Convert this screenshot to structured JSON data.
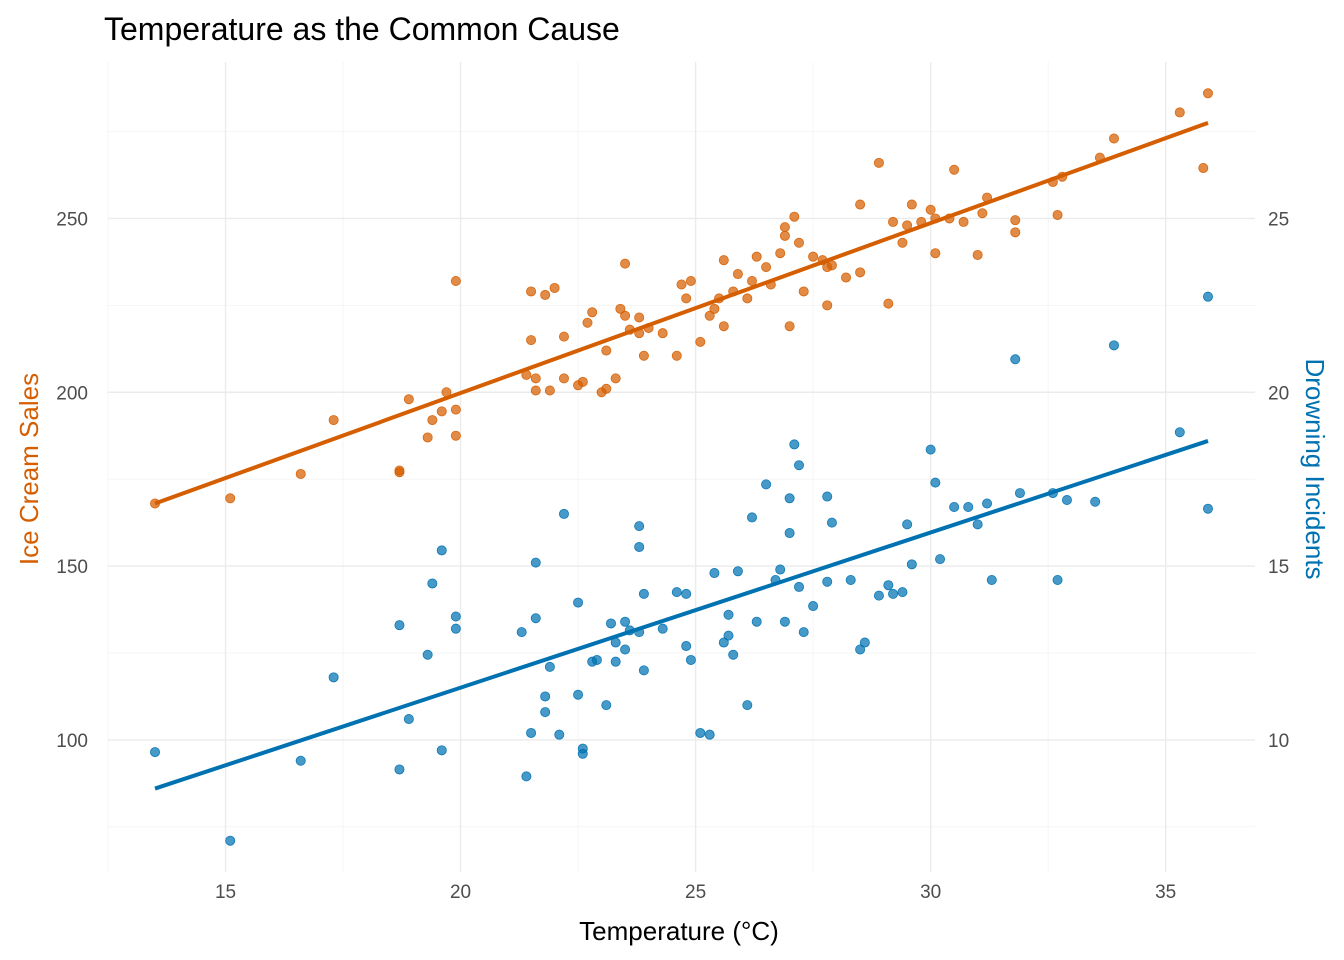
{
  "chart_data": {
    "type": "scatter",
    "title": "Temperature as the Common Cause",
    "xlabel": "Temperature (°C)",
    "ylabel": "Ice Cream Sales",
    "y2label": "Drowning Incidents",
    "xlim": [
      12.5,
      36.9
    ],
    "ylim": [
      62,
      295
    ],
    "y2lim": [
      6.2,
      29.5
    ],
    "x_ticks": [
      15,
      20,
      25,
      30,
      35
    ],
    "y_ticks": [
      100,
      150,
      200,
      250
    ],
    "y2_ticks": [
      10,
      15,
      20,
      25
    ],
    "grid": true,
    "colors": {
      "ice_cream": "#D55E00",
      "drowning": "#0072B2"
    },
    "series": [
      {
        "axis": "left",
        "color": "#D55E00",
        "trend": {
          "x": [
            13.5,
            35.9
          ],
          "y": [
            168,
            277.5
          ]
        },
        "points": [
          [
            13.5,
            168
          ],
          [
            15.1,
            169.5
          ],
          [
            16.6,
            176.5
          ],
          [
            17.3,
            192
          ],
          [
            18.7,
            177.5
          ],
          [
            18.7,
            177
          ],
          [
            18.9,
            198
          ],
          [
            19.3,
            187
          ],
          [
            19.4,
            192
          ],
          [
            19.6,
            194.5
          ],
          [
            19.7,
            200
          ],
          [
            19.9,
            195
          ],
          [
            19.9,
            187.5
          ],
          [
            19.9,
            232
          ],
          [
            21.4,
            205
          ],
          [
            21.5,
            229
          ],
          [
            21.5,
            215
          ],
          [
            21.6,
            204
          ],
          [
            21.6,
            200.5
          ],
          [
            21.8,
            228
          ],
          [
            22.0,
            230
          ],
          [
            21.9,
            200.5
          ],
          [
            22.2,
            216
          ],
          [
            22.2,
            204
          ],
          [
            22.5,
            202
          ],
          [
            22.6,
            203
          ],
          [
            22.7,
            220
          ],
          [
            22.8,
            223
          ],
          [
            23.0,
            200
          ],
          [
            23.1,
            201
          ],
          [
            23.1,
            212
          ],
          [
            23.3,
            204
          ],
          [
            23.4,
            224
          ],
          [
            23.5,
            237
          ],
          [
            23.5,
            222
          ],
          [
            23.6,
            218
          ],
          [
            23.8,
            221.5
          ],
          [
            23.8,
            217
          ],
          [
            23.9,
            210.5
          ],
          [
            24.0,
            218.5
          ],
          [
            24.3,
            217
          ],
          [
            24.6,
            210.5
          ],
          [
            24.7,
            231
          ],
          [
            24.8,
            227
          ],
          [
            24.9,
            232
          ],
          [
            25.1,
            214.5
          ],
          [
            25.3,
            222
          ],
          [
            25.4,
            224
          ],
          [
            25.5,
            227
          ],
          [
            25.6,
            238
          ],
          [
            25.6,
            219
          ],
          [
            25.8,
            229
          ],
          [
            25.9,
            234
          ],
          [
            26.1,
            227
          ],
          [
            26.2,
            232
          ],
          [
            26.3,
            239
          ],
          [
            26.5,
            236
          ],
          [
            26.6,
            231
          ],
          [
            26.8,
            240
          ],
          [
            26.9,
            245
          ],
          [
            26.9,
            247.5
          ],
          [
            27.0,
            219
          ],
          [
            27.1,
            250.5
          ],
          [
            27.3,
            229
          ],
          [
            27.2,
            243
          ],
          [
            27.5,
            239
          ],
          [
            27.7,
            238
          ],
          [
            27.8,
            236
          ],
          [
            27.8,
            225
          ],
          [
            27.9,
            236.5
          ],
          [
            28.2,
            233
          ],
          [
            28.5,
            254
          ],
          [
            28.5,
            234.5
          ],
          [
            28.9,
            266
          ],
          [
            29.1,
            225.5
          ],
          [
            29.2,
            249
          ],
          [
            29.4,
            243
          ],
          [
            29.5,
            248
          ],
          [
            29.6,
            254
          ],
          [
            29.8,
            249
          ],
          [
            30.0,
            252.5
          ],
          [
            30.1,
            250
          ],
          [
            30.1,
            240
          ],
          [
            30.4,
            250
          ],
          [
            30.5,
            264
          ],
          [
            30.7,
            249
          ],
          [
            31.0,
            239.5
          ],
          [
            31.1,
            251.5
          ],
          [
            31.2,
            256
          ],
          [
            31.8,
            246
          ],
          [
            31.8,
            249.5
          ],
          [
            32.6,
            260.5
          ],
          [
            32.7,
            251
          ],
          [
            32.8,
            262
          ],
          [
            33.6,
            267.5
          ],
          [
            33.9,
            273
          ],
          [
            35.3,
            280.5
          ],
          [
            35.8,
            264.5
          ],
          [
            35.9,
            286
          ]
        ]
      },
      {
        "axis": "right",
        "color": "#0072B2",
        "trend": {
          "x": [
            13.5,
            35.9
          ],
          "y": [
            8.6,
            18.6
          ]
        },
        "points": [
          [
            13.5,
            9.65
          ],
          [
            15.1,
            7.1
          ],
          [
            16.6,
            9.4
          ],
          [
            17.3,
            11.8
          ],
          [
            18.7,
            13.3
          ],
          [
            18.7,
            9.15
          ],
          [
            18.9,
            10.6
          ],
          [
            19.3,
            12.45
          ],
          [
            19.4,
            14.5
          ],
          [
            19.6,
            15.45
          ],
          [
            19.6,
            9.7
          ],
          [
            19.9,
            13.2
          ],
          [
            19.9,
            13.55
          ],
          [
            21.3,
            13.1
          ],
          [
            21.4,
            8.95
          ],
          [
            21.5,
            10.2
          ],
          [
            21.6,
            13.5
          ],
          [
            21.6,
            15.1
          ],
          [
            21.8,
            11.25
          ],
          [
            21.8,
            10.8
          ],
          [
            21.9,
            12.1
          ],
          [
            22.1,
            10.15
          ],
          [
            22.2,
            16.5
          ],
          [
            22.5,
            11.3
          ],
          [
            22.5,
            13.95
          ],
          [
            22.6,
            9.75
          ],
          [
            22.6,
            9.6
          ],
          [
            22.8,
            12.25
          ],
          [
            22.9,
            12.3
          ],
          [
            23.1,
            11.0
          ],
          [
            23.2,
            13.35
          ],
          [
            23.3,
            12.8
          ],
          [
            23.3,
            12.25
          ],
          [
            23.5,
            13.4
          ],
          [
            23.5,
            12.6
          ],
          [
            23.6,
            13.15
          ],
          [
            23.8,
            13.1
          ],
          [
            23.8,
            15.55
          ],
          [
            23.8,
            16.15
          ],
          [
            23.9,
            14.2
          ],
          [
            23.9,
            12.0
          ],
          [
            24.3,
            13.2
          ],
          [
            24.6,
            14.25
          ],
          [
            24.8,
            14.2
          ],
          [
            24.8,
            12.7
          ],
          [
            24.9,
            12.3
          ],
          [
            25.1,
            10.2
          ],
          [
            25.3,
            10.15
          ],
          [
            25.4,
            14.8
          ],
          [
            25.6,
            12.8
          ],
          [
            25.7,
            13.6
          ],
          [
            25.7,
            13.0
          ],
          [
            25.8,
            12.45
          ],
          [
            25.9,
            14.85
          ],
          [
            26.1,
            11.0
          ],
          [
            26.2,
            16.4
          ],
          [
            26.3,
            13.4
          ],
          [
            26.5,
            17.35
          ],
          [
            26.7,
            14.6
          ],
          [
            26.8,
            14.9
          ],
          [
            26.9,
            13.4
          ],
          [
            27.0,
            15.95
          ],
          [
            27.0,
            16.95
          ],
          [
            27.1,
            18.5
          ],
          [
            27.2,
            17.9
          ],
          [
            27.2,
            14.4
          ],
          [
            27.3,
            13.1
          ],
          [
            27.5,
            13.85
          ],
          [
            27.8,
            17.0
          ],
          [
            27.8,
            14.55
          ],
          [
            27.9,
            16.25
          ],
          [
            28.3,
            14.6
          ],
          [
            28.5,
            12.6
          ],
          [
            28.6,
            12.8
          ],
          [
            28.9,
            14.15
          ],
          [
            29.1,
            14.45
          ],
          [
            29.2,
            14.2
          ],
          [
            29.4,
            14.25
          ],
          [
            29.5,
            16.2
          ],
          [
            29.6,
            15.05
          ],
          [
            30.0,
            18.35
          ],
          [
            30.1,
            17.4
          ],
          [
            30.2,
            15.2
          ],
          [
            30.5,
            16.7
          ],
          [
            30.8,
            16.7
          ],
          [
            31.0,
            16.2
          ],
          [
            31.2,
            16.8
          ],
          [
            31.3,
            14.6
          ],
          [
            31.8,
            20.95
          ],
          [
            31.9,
            17.1
          ],
          [
            32.6,
            17.1
          ],
          [
            32.7,
            14.6
          ],
          [
            32.9,
            16.9
          ],
          [
            33.5,
            16.85
          ],
          [
            33.9,
            21.35
          ],
          [
            35.3,
            18.85
          ],
          [
            35.9,
            16.65
          ],
          [
            35.9,
            22.75
          ]
        ]
      }
    ]
  }
}
